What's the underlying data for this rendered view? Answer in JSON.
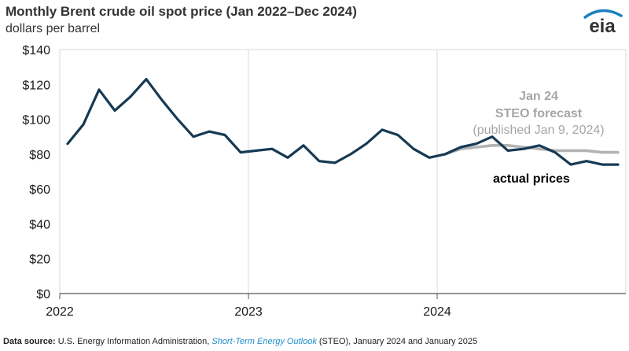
{
  "header": {
    "title": "Monthly Brent crude oil spot price (Jan 2022–Dec 2024)",
    "subtitle": "dollars per barrel"
  },
  "logo": {
    "text": "eia",
    "icon": "eia-logo-icon",
    "color": "#1a7fc1"
  },
  "footer": {
    "label": "Data source:",
    "text_before": " U.S. Energy Information Administration, ",
    "italic": "Short-Term Energy Outlook",
    "text_after": " (STEO), January 2024 and January 2025"
  },
  "chart_data": {
    "type": "line",
    "ylim": [
      0,
      140
    ],
    "y_ticks": [
      0,
      20,
      40,
      60,
      80,
      100,
      120,
      140
    ],
    "y_tick_labels": [
      "$0",
      "$20",
      "$40",
      "$60",
      "$80",
      "$100",
      "$120",
      "$140"
    ],
    "x_range": [
      "2022-01",
      "2025-01"
    ],
    "x_ticks": [
      "2022-01",
      "2023-01",
      "2024-01"
    ],
    "x_tick_labels": [
      "2022",
      "2023",
      "2024"
    ],
    "grid": true,
    "series": [
      {
        "name": "actual prices",
        "color": "#163a54",
        "x": [
          "2022-01",
          "2022-02",
          "2022-03",
          "2022-04",
          "2022-05",
          "2022-06",
          "2022-07",
          "2022-08",
          "2022-09",
          "2022-10",
          "2022-11",
          "2022-12",
          "2023-01",
          "2023-02",
          "2023-03",
          "2023-04",
          "2023-05",
          "2023-06",
          "2023-07",
          "2023-08",
          "2023-09",
          "2023-10",
          "2023-11",
          "2023-12",
          "2024-01",
          "2024-02",
          "2024-03",
          "2024-04",
          "2024-05",
          "2024-06",
          "2024-07",
          "2024-08",
          "2024-09",
          "2024-10",
          "2024-11",
          "2024-12"
        ],
        "values": [
          86,
          97,
          117,
          105,
          113,
          123,
          111,
          100,
          90,
          93,
          91,
          81,
          82,
          83,
          78,
          85,
          76,
          75,
          80,
          86,
          94,
          91,
          83,
          78,
          80,
          84,
          86,
          90,
          82,
          83,
          85,
          81,
          74,
          76,
          74,
          74
        ]
      },
      {
        "name": "Jan 24 STEO forecast (published Jan 9, 2024)",
        "color": "#b3b3b3",
        "x": [
          "2024-01",
          "2024-02",
          "2024-03",
          "2024-04",
          "2024-05",
          "2024-06",
          "2024-07",
          "2024-08",
          "2024-09",
          "2024-10",
          "2024-11",
          "2024-12"
        ],
        "values": [
          80,
          83,
          84,
          85,
          85,
          84,
          83,
          82,
          82,
          82,
          81,
          81
        ]
      }
    ],
    "annotations": {
      "forecast_line1": "Jan 24",
      "forecast_line2": "STEO forecast",
      "forecast_line3": "(published Jan 9, 2024)",
      "actual": "actual prices"
    }
  }
}
